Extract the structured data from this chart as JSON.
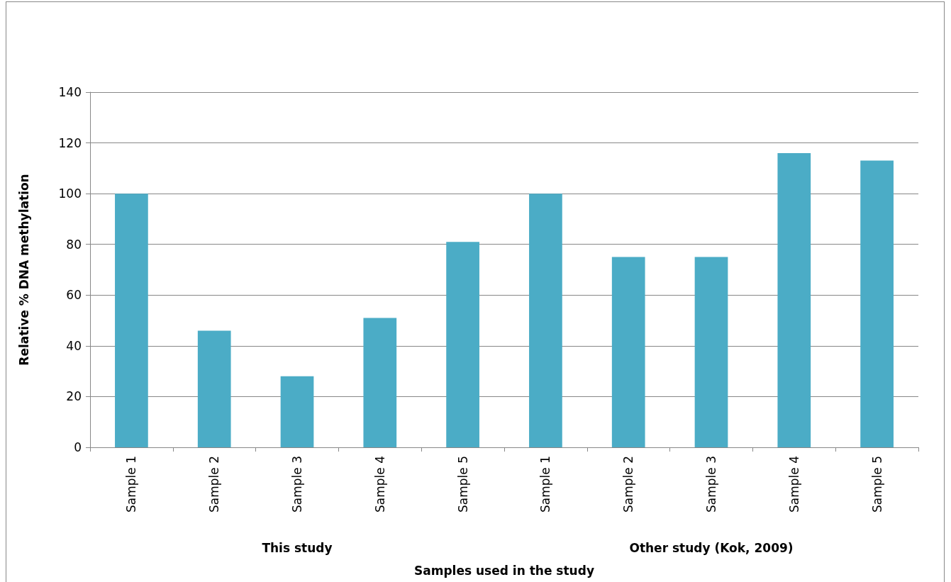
{
  "chart_data": {
    "type": "bar",
    "xlabel": "Samples used in the study",
    "ylabel": "Relative % DNA methylation",
    "categories": [
      "Sample 1",
      "Sample 2",
      "Sample 3",
      "Sample 4",
      "Sample 5",
      "Sample 1",
      "Sample 2",
      "Sample 3",
      "Sample 4",
      "Sample 5"
    ],
    "values": [
      100,
      46,
      28,
      51,
      81,
      100,
      75,
      75,
      116,
      113
    ],
    "color": "#4bacc6",
    "ylim": [
      0,
      140
    ],
    "yticks": [
      0,
      20,
      40,
      60,
      80,
      100,
      120,
      140
    ],
    "grid": "y",
    "annotations": [
      "This study",
      "Other study (Kok, 2009)"
    ]
  }
}
